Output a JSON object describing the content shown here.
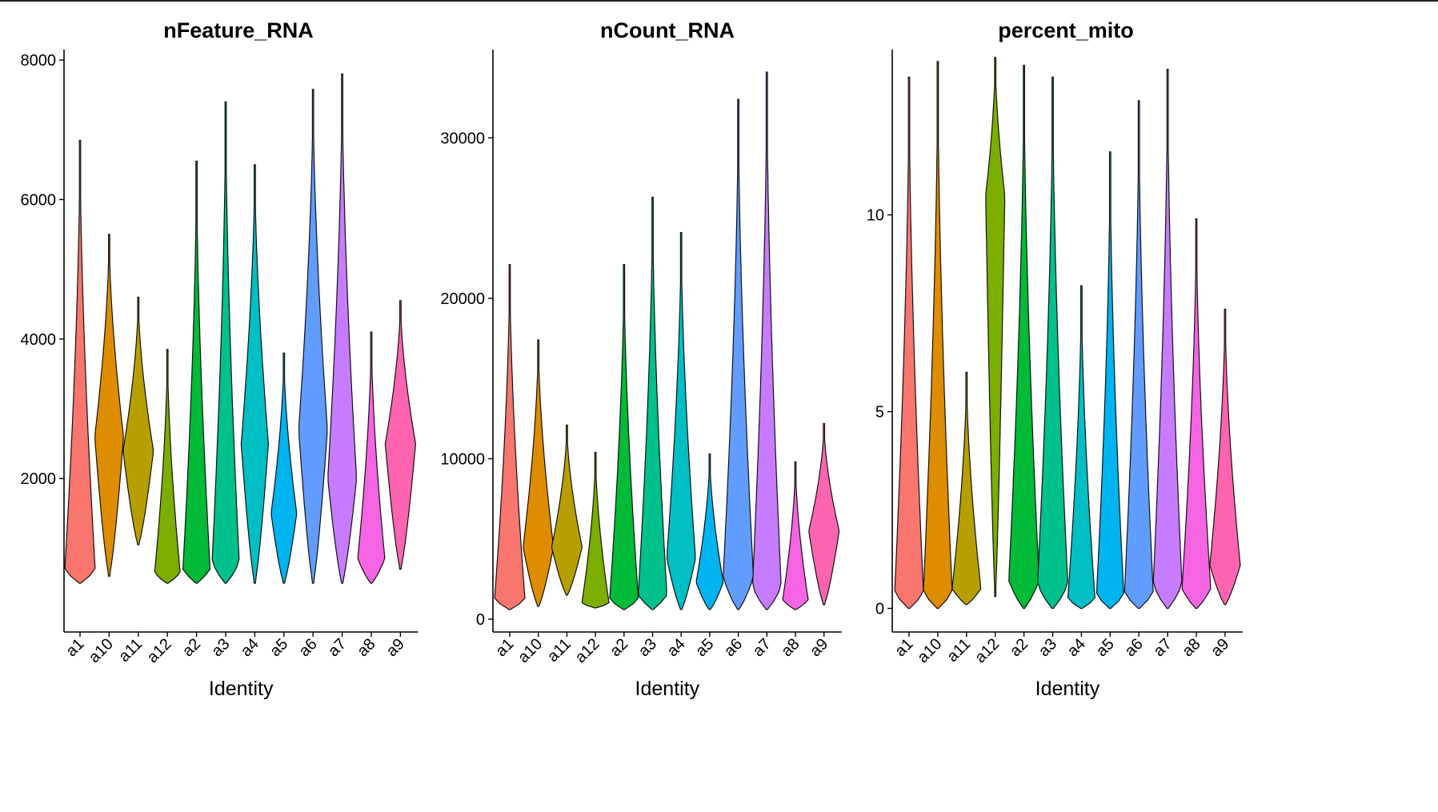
{
  "figure": {
    "xlabel": "Identity"
  },
  "colors": [
    "#F8766D",
    "#DE8C00",
    "#B79F00",
    "#7CAE00",
    "#00BA38",
    "#00C08B",
    "#00BFC4",
    "#00B4F0",
    "#619CFF",
    "#C77CFF",
    "#F564E3",
    "#FF64B0"
  ],
  "chart_data": [
    {
      "type": "violin",
      "title": "nFeature_RNA",
      "xlabel": "Identity",
      "ylabel": "",
      "ylim": [
        -200,
        8150
      ],
      "yticks": [
        2000,
        4000,
        6000,
        8000
      ],
      "ytick_labels": [
        "2000",
        "4000",
        "6000",
        "8000"
      ],
      "categories": [
        "a1",
        "a10",
        "a11",
        "a12",
        "a2",
        "a3",
        "a4",
        "a5",
        "a6",
        "a7",
        "a8",
        "a9"
      ],
      "series": [
        {
          "name": "a1",
          "min": 500,
          "widest": 650,
          "max": 6850,
          "width_max": 0.95
        },
        {
          "name": "a10",
          "min": 600,
          "widest": 2600,
          "max": 5500,
          "width_max": 0.9
        },
        {
          "name": "a11",
          "min": 1050,
          "widest": 2400,
          "max": 4600,
          "width_max": 0.95
        },
        {
          "name": "a12",
          "min": 500,
          "widest": 650,
          "max": 3850,
          "width_max": 0.8
        },
        {
          "name": "a2",
          "min": 500,
          "widest": 700,
          "max": 6550,
          "width_max": 0.85
        },
        {
          "name": "a3",
          "min": 500,
          "widest": 800,
          "max": 7400,
          "width_max": 0.85
        },
        {
          "name": "a4",
          "min": 500,
          "widest": 2500,
          "max": 6500,
          "width_max": 0.85
        },
        {
          "name": "a5",
          "min": 500,
          "widest": 1500,
          "max": 3800,
          "width_max": 0.8
        },
        {
          "name": "a6",
          "min": 500,
          "widest": 2700,
          "max": 7580,
          "width_max": 0.9
        },
        {
          "name": "a7",
          "min": 500,
          "widest": 2000,
          "max": 7800,
          "width_max": 0.9
        },
        {
          "name": "a8",
          "min": 500,
          "widest": 850,
          "max": 4100,
          "width_max": 0.85
        },
        {
          "name": "a9",
          "min": 700,
          "widest": 2500,
          "max": 4550,
          "width_max": 0.95
        }
      ]
    },
    {
      "type": "violin",
      "title": "nCount_RNA",
      "xlabel": "Identity",
      "ylabel": "",
      "ylim": [
        -800,
        35500
      ],
      "yticks": [
        0,
        10000,
        20000,
        30000
      ],
      "ytick_labels": [
        "0",
        "10000",
        "20000",
        "30000"
      ],
      "categories": [
        "a1",
        "a10",
        "a11",
        "a12",
        "a2",
        "a3",
        "a4",
        "a5",
        "a6",
        "a7",
        "a8",
        "a9"
      ],
      "series": [
        {
          "name": "a1",
          "min": 600,
          "widest": 1200,
          "max": 22100,
          "width_max": 0.95
        },
        {
          "name": "a10",
          "min": 800,
          "widest": 4500,
          "max": 17400,
          "width_max": 0.95
        },
        {
          "name": "a11",
          "min": 1500,
          "widest": 4500,
          "max": 12100,
          "width_max": 0.95
        },
        {
          "name": "a12",
          "min": 700,
          "widest": 900,
          "max": 10400,
          "width_max": 0.85
        },
        {
          "name": "a2",
          "min": 600,
          "widest": 1000,
          "max": 22100,
          "width_max": 0.9
        },
        {
          "name": "a3",
          "min": 600,
          "widest": 1500,
          "max": 26300,
          "width_max": 0.9
        },
        {
          "name": "a4",
          "min": 600,
          "widest": 3800,
          "max": 24100,
          "width_max": 0.9
        },
        {
          "name": "a5",
          "min": 600,
          "widest": 2300,
          "max": 10300,
          "width_max": 0.85
        },
        {
          "name": "a6",
          "min": 600,
          "widest": 2600,
          "max": 32400,
          "width_max": 0.95
        },
        {
          "name": "a7",
          "min": 600,
          "widest": 2000,
          "max": 34100,
          "width_max": 0.9
        },
        {
          "name": "a8",
          "min": 600,
          "widest": 1200,
          "max": 9800,
          "width_max": 0.8
        },
        {
          "name": "a9",
          "min": 900,
          "widest": 5500,
          "max": 12200,
          "width_max": 0.95
        }
      ]
    },
    {
      "type": "violin",
      "title": "percent_mito",
      "xlabel": "Identity",
      "ylabel": "",
      "ylim": [
        -0.6,
        14.2
      ],
      "yticks": [
        0,
        5,
        10
      ],
      "ytick_labels": [
        "0",
        "5",
        "10"
      ],
      "categories": [
        "a1",
        "a10",
        "a11",
        "a12",
        "a2",
        "a3",
        "a4",
        "a5",
        "a6",
        "a7",
        "a8",
        "a9"
      ],
      "series": [
        {
          "name": "a1",
          "min": 0,
          "widest": 0.35,
          "max": 13.5,
          "width_max": 0.9
        },
        {
          "name": "a10",
          "min": 0,
          "widest": 0.2,
          "max": 13.9,
          "width_max": 0.9
        },
        {
          "name": "a11",
          "min": 0.1,
          "widest": 0.5,
          "max": 6.0,
          "width_max": 0.9
        },
        {
          "name": "a12",
          "min": 0.3,
          "widest": 10.5,
          "max": 14.0,
          "width_max": 0.6
        },
        {
          "name": "a2",
          "min": 0,
          "widest": 0.7,
          "max": 13.8,
          "width_max": 0.95
        },
        {
          "name": "a3",
          "min": 0,
          "widest": 0.6,
          "max": 13.5,
          "width_max": 0.95
        },
        {
          "name": "a4",
          "min": 0,
          "widest": 0.25,
          "max": 8.2,
          "width_max": 0.85
        },
        {
          "name": "a5",
          "min": 0,
          "widest": 0.2,
          "max": 11.6,
          "width_max": 0.85
        },
        {
          "name": "a6",
          "min": 0,
          "widest": 0.4,
          "max": 12.9,
          "width_max": 0.9
        },
        {
          "name": "a7",
          "min": 0,
          "widest": 0.6,
          "max": 13.7,
          "width_max": 0.9
        },
        {
          "name": "a8",
          "min": 0,
          "widest": 0.5,
          "max": 9.9,
          "width_max": 0.9
        },
        {
          "name": "a9",
          "min": 0.1,
          "widest": 1.1,
          "max": 7.6,
          "width_max": 0.95
        }
      ]
    }
  ]
}
